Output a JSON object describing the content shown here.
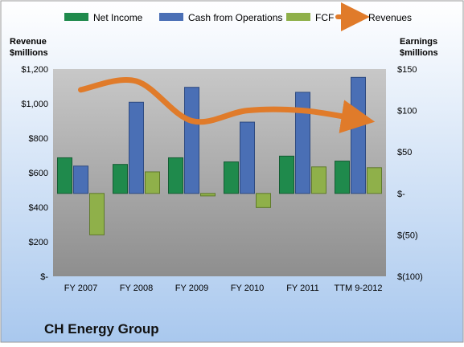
{
  "company": "CH Energy Group",
  "colors": {
    "net_income": "#1f8a4c",
    "cash_from_operations": "#4a6fb5",
    "fcf": "#8fb04a",
    "revenues": "#e07b2a",
    "plot_top": "#c8c8c8",
    "plot_bottom": "#8e8e8e",
    "bg_top": "#ffffff",
    "bg_bottom": "#a9c8ee"
  },
  "chart_data": {
    "type": "bar",
    "title": "",
    "categories": [
      "FY 2007",
      "FY 2008",
      "FY 2009",
      "FY 2010",
      "FY 2011",
      "TTM 9-2012"
    ],
    "legend_position": "top",
    "grid": false,
    "y_left": {
      "label_line1": "Revenue",
      "label_line2": "$millions",
      "range": [
        0,
        1200
      ],
      "ticks": [
        0,
        200,
        400,
        600,
        800,
        1000,
        1200
      ],
      "tick_labels": [
        "$-",
        "$200",
        "$400",
        "$600",
        "$800",
        "$1,000",
        "$1,200"
      ]
    },
    "y_right": {
      "label_line1": "Earnings",
      "label_line2": "$millions",
      "range": [
        -100,
        150
      ],
      "ticks": [
        -100,
        -50,
        0,
        50,
        100,
        150
      ],
      "tick_labels": [
        "$(100)",
        "$(50)",
        "$-",
        "$50",
        "$100",
        "$150"
      ]
    },
    "series": [
      {
        "name": "Net Income",
        "type": "bar",
        "axis": "right",
        "values": [
          43,
          35,
          43,
          38,
          45,
          39
        ]
      },
      {
        "name": "Cash from Operations",
        "type": "bar",
        "axis": "right",
        "values": [
          33,
          110,
          128,
          86,
          122,
          140
        ]
      },
      {
        "name": "FCF",
        "type": "bar",
        "axis": "right",
        "values": [
          -50,
          26,
          -3,
          -17,
          32,
          31
        ]
      },
      {
        "name": "Revenues",
        "type": "line",
        "axis": "left",
        "values": [
          1080,
          1130,
          900,
          960,
          960,
          910
        ]
      }
    ]
  }
}
